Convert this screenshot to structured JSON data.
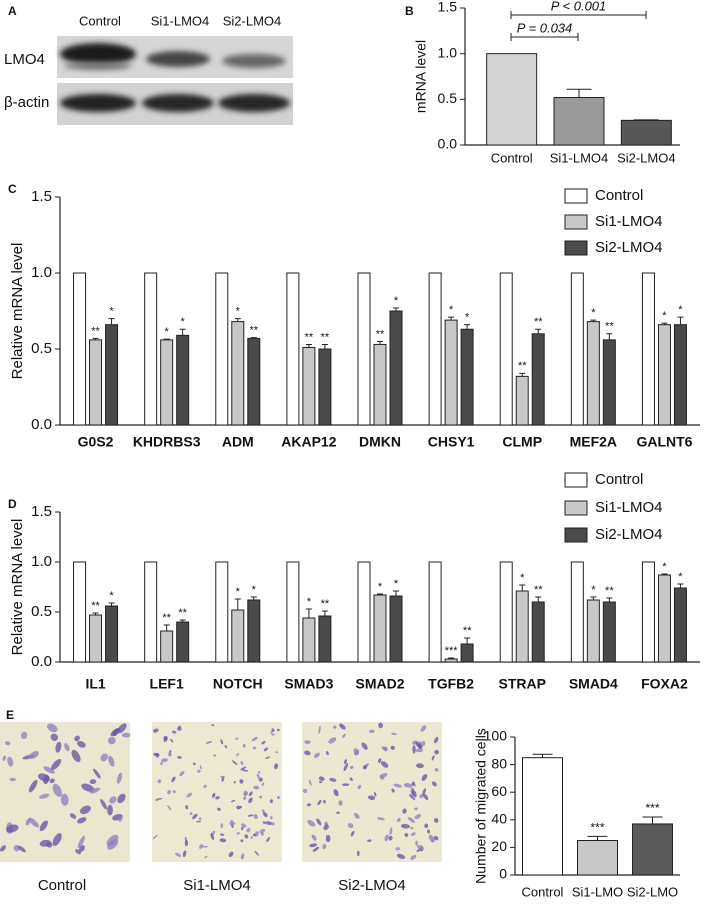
{
  "blot": {
    "label": "A",
    "lanes": [
      "Control",
      "Si1-LMO4",
      "Si2-LMO4"
    ],
    "rows": [
      "LMO4",
      "β-actin"
    ]
  },
  "micrographs": {
    "label": "E",
    "captions": [
      "Control",
      "Si1-LMO4",
      "Si2-LMO4"
    ]
  },
  "chart_data": [
    {
      "type": "bar",
      "panel": "B",
      "ylabel": "mRNA level",
      "categories": [
        "Control",
        "Si1-LMO4",
        "Si2-LMO4"
      ],
      "values": [
        1.0,
        0.52,
        0.27
      ],
      "errors": [
        null,
        0.09,
        0.005
      ],
      "colors": [
        "#d4d4d4",
        "#9a9a9a",
        "#575757"
      ],
      "ylim": [
        0,
        1.5
      ],
      "yticks": [
        {
          "value": 0,
          "label": "0.0"
        },
        0.5,
        {
          "value": 1,
          "label": "1.0"
        },
        1.5
      ],
      "annotations": [
        "P = 0.034",
        "P < 0.001"
      ]
    },
    {
      "type": "grouped_bar",
      "panel": "C",
      "ylabel": "Relative mRNA level",
      "categories": [
        "G0S2",
        "KHDRBS3",
        "ADM",
        "AKAP12",
        "DMKN",
        "CHSY1",
        "CLMP",
        "MEF2A",
        "GALNT6"
      ],
      "series": [
        {
          "name": "Control",
          "color": "#ffffff",
          "values": [
            1,
            1,
            1,
            1,
            1,
            1,
            1,
            1,
            1
          ]
        },
        {
          "name": "Si1-LMO4",
          "color": "#c8c8c8",
          "values": [
            0.56,
            0.56,
            0.68,
            0.51,
            0.53,
            0.69,
            0.32,
            0.68,
            0.66
          ],
          "errors": [
            0.01,
            0.005,
            0.02,
            0.02,
            0.02,
            0.02,
            0.02,
            0.01,
            0.01
          ],
          "significance": [
            "**",
            "*",
            "*",
            "**",
            "**",
            "*",
            "**",
            "*",
            "*"
          ]
        },
        {
          "name": "Si2-LMO4",
          "color": "#4a4a4a",
          "values": [
            0.66,
            0.59,
            0.57,
            0.5,
            0.75,
            0.63,
            0.6,
            0.56,
            0.66
          ],
          "errors": [
            0.04,
            0.04,
            0.005,
            0.03,
            0.02,
            0.03,
            0.03,
            0.04,
            0.05
          ],
          "significance": [
            "*",
            "*",
            "**",
            "**",
            "*",
            "*",
            "**",
            "**",
            "*"
          ]
        }
      ],
      "ylim": [
        0,
        1.5
      ],
      "yticks": [
        {
          "value": 0,
          "label": "0.0"
        },
        0.5,
        {
          "value": 1,
          "label": "1.0"
        },
        1.5
      ]
    },
    {
      "type": "grouped_bar",
      "panel": "D",
      "ylabel": "Relative mRNA level",
      "categories": [
        "IL1",
        "LEF1",
        "NOTCH",
        "SMAD3",
        "SMAD2",
        "TGFB2",
        "STRAP",
        "SMAD4",
        "FOXA2"
      ],
      "series": [
        {
          "name": "Control",
          "color": "#ffffff",
          "values": [
            1,
            1,
            1,
            1,
            1,
            1,
            1,
            1,
            1
          ]
        },
        {
          "name": "Si1-LMO4",
          "color": "#c8c8c8",
          "values": [
            0.47,
            0.31,
            0.52,
            0.44,
            0.67,
            0.03,
            0.71,
            0.62,
            0.87
          ],
          "errors": [
            0.02,
            0.06,
            0.11,
            0.09,
            0.01,
            0.01,
            0.06,
            0.03,
            0.01
          ],
          "significance": [
            "**",
            "**",
            "*",
            "*",
            "*",
            "***",
            "*",
            "*",
            "*"
          ]
        },
        {
          "name": "Si2-LMO4",
          "color": "#4a4a4a",
          "values": [
            0.56,
            0.4,
            0.62,
            0.46,
            0.66,
            0.18,
            0.6,
            0.6,
            0.74
          ],
          "errors": [
            0.03,
            0.02,
            0.03,
            0.05,
            0.05,
            0.06,
            0.05,
            0.04,
            0.04
          ],
          "significance": [
            "*",
            "**",
            "*",
            "**",
            "*",
            "**",
            "**",
            "**",
            "*"
          ]
        }
      ],
      "ylim": [
        0,
        1.5
      ],
      "yticks": [
        {
          "value": 0,
          "label": "0.0"
        },
        0.5,
        {
          "value": 1,
          "label": "1.0"
        },
        1.5
      ]
    },
    {
      "type": "bar",
      "ylabel": "Number of migrated cells",
      "categories": [
        "Control",
        "Si1-LMO",
        "Si2-LMO"
      ],
      "values": [
        85,
        25,
        37
      ],
      "errors": [
        2.5,
        3,
        5
      ],
      "significance": [
        null,
        "***",
        "***"
      ],
      "colors": [
        "#ffffff",
        "#c8c8c8",
        "#5a5a5a"
      ],
      "ylim": [
        0,
        100
      ],
      "yticks": [
        0,
        20,
        40,
        60,
        80,
        100
      ]
    }
  ]
}
